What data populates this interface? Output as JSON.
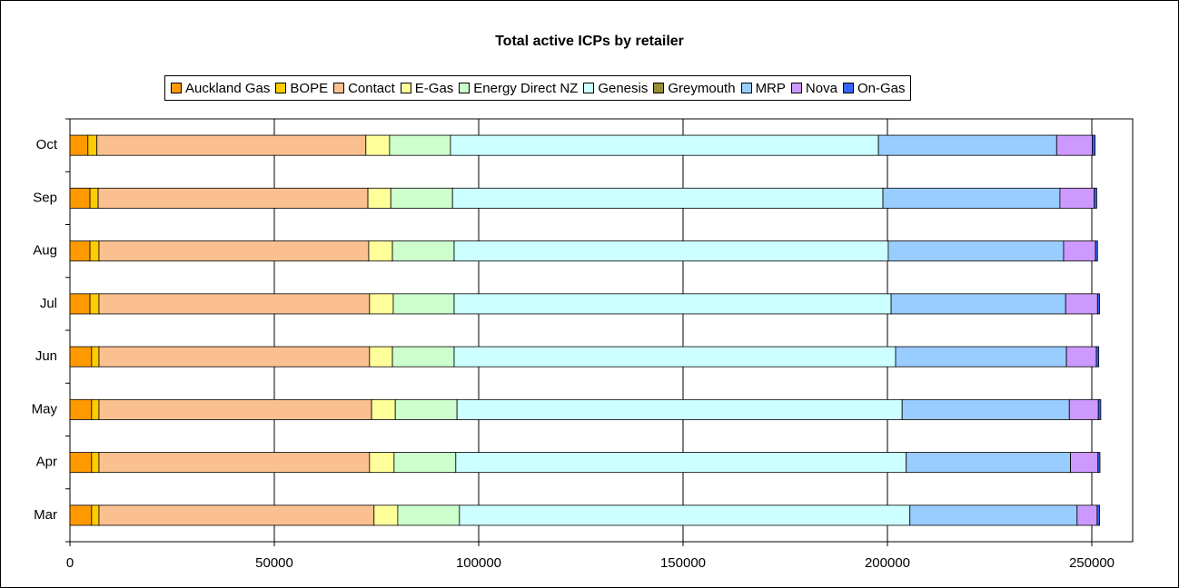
{
  "chart_data": {
    "type": "stacked-barh",
    "title": "Total active ICPs by retailer",
    "categories": [
      "Mar",
      "Apr",
      "May",
      "Jun",
      "Jul",
      "Aug",
      "Sep",
      "Oct"
    ],
    "series": [
      {
        "name": "Auckland Gas",
        "color": "#ff9900",
        "values": [
          5300,
          5300,
          5300,
          5300,
          4900,
          4900,
          4900,
          4400
        ]
      },
      {
        "name": "BOPE",
        "color": "#ffcc00",
        "values": [
          1800,
          1800,
          1800,
          1800,
          2200,
          2200,
          2000,
          2200
        ]
      },
      {
        "name": "Contact",
        "color": "#fac090",
        "values": [
          67300,
          66200,
          66700,
          66200,
          66200,
          66000,
          66000,
          65800
        ]
      },
      {
        "name": "E-Gas",
        "color": "#ffff99",
        "values": [
          5800,
          6000,
          5800,
          5600,
          5800,
          5800,
          5600,
          5800
        ]
      },
      {
        "name": "Energy Direct NZ",
        "color": "#ccffcc",
        "values": [
          15100,
          15100,
          15100,
          15100,
          14900,
          15100,
          15100,
          14900
        ]
      },
      {
        "name": "Genesis",
        "color": "#ccffff",
        "values": [
          110200,
          110200,
          108900,
          108000,
          106900,
          106200,
          105300,
          104700
        ]
      },
      {
        "name": "Greymouth",
        "color": "#998e33",
        "values": [
          0,
          0,
          0,
          0,
          0,
          0,
          0,
          0
        ]
      },
      {
        "name": "MRP",
        "color": "#99ccff",
        "values": [
          40900,
          40200,
          40900,
          41800,
          42700,
          42900,
          43300,
          43600
        ]
      },
      {
        "name": "Nova",
        "color": "#cc99ff",
        "values": [
          4900,
          6700,
          7100,
          7300,
          7800,
          7800,
          8400,
          8700
        ]
      },
      {
        "name": "On-Gas",
        "color": "#3366ff",
        "values": [
          600,
          500,
          600,
          600,
          500,
          500,
          600,
          700
        ]
      }
    ],
    "xlim": [
      0,
      260000
    ],
    "xticks": [
      0,
      50000,
      100000,
      150000,
      200000,
      250000
    ],
    "grid": true
  }
}
